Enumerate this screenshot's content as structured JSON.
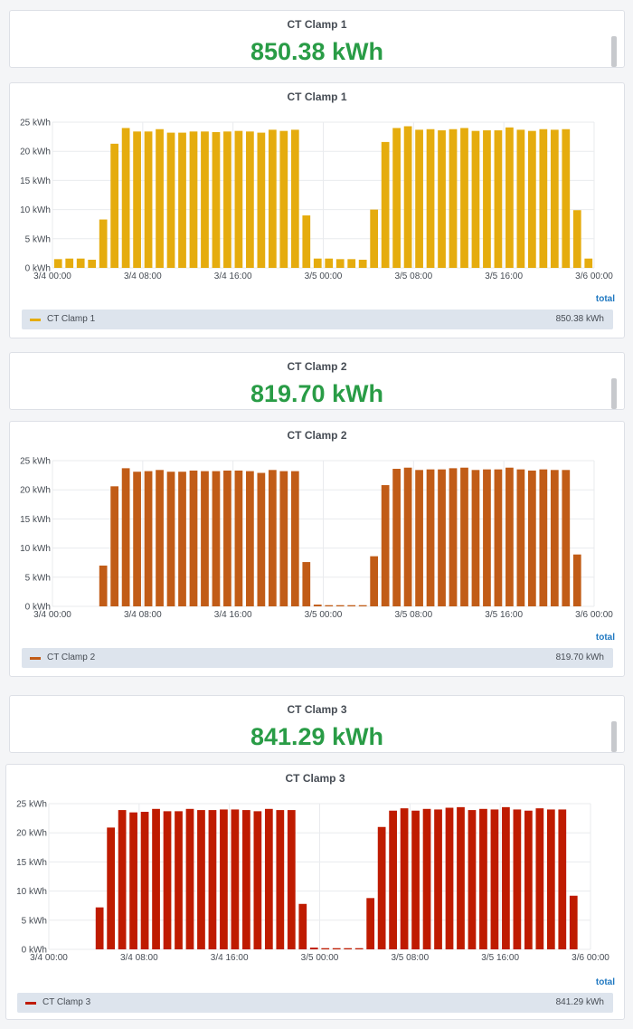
{
  "stats": [
    {
      "title": "CT Clamp 1",
      "value": "850.38 kWh"
    },
    {
      "title": "CT Clamp 2",
      "value": "819.70 kWh"
    },
    {
      "title": "CT Clamp 3",
      "value": "841.29 kWh"
    }
  ],
  "colors": {
    "clamp1": "#e5ac0e",
    "clamp2": "#c15c17",
    "clamp3": "#bf1b00",
    "stat": "#299c46"
  },
  "legend_header": "total",
  "chart_data": [
    {
      "type": "bar",
      "title": "CT Clamp 1",
      "xlabel": "",
      "ylabel": "",
      "ylim": [
        0,
        25
      ],
      "y_ticks": [
        "0 kWh",
        "5 kWh",
        "10 kWh",
        "15 kWh",
        "20 kWh",
        "25 kWh"
      ],
      "x_ticks": [
        "3/4 00:00",
        "3/4 08:00",
        "3/4 16:00",
        "3/5 00:00",
        "3/5 08:00",
        "3/5 16:00",
        "3/6 00:00"
      ],
      "series": [
        {
          "name": "CT Clamp 1",
          "total": "850.38 kWh",
          "values": [
            1.5,
            1.6,
            1.6,
            1.4,
            8.3,
            21.3,
            24.0,
            23.4,
            23.4,
            23.8,
            23.2,
            23.2,
            23.4,
            23.4,
            23.3,
            23.4,
            23.5,
            23.4,
            23.2,
            23.7,
            23.5,
            23.7,
            9.0,
            1.6,
            1.6,
            1.5,
            1.5,
            1.4,
            10.0,
            21.6,
            24.0,
            24.3,
            23.7,
            23.8,
            23.6,
            23.8,
            24.0,
            23.5,
            23.6,
            23.6,
            24.1,
            23.7,
            23.5,
            23.8,
            23.7,
            23.8,
            9.9,
            1.6
          ]
        }
      ]
    },
    {
      "type": "bar",
      "title": "CT Clamp 2",
      "xlabel": "",
      "ylabel": "",
      "ylim": [
        0,
        25
      ],
      "y_ticks": [
        "0 kWh",
        "5 kWh",
        "10 kWh",
        "15 kWh",
        "20 kWh",
        "25 kWh"
      ],
      "x_ticks": [
        "3/4 00:00",
        "3/4 08:00",
        "3/4 16:00",
        "3/5 00:00",
        "3/5 08:00",
        "3/5 16:00",
        "3/6 00:00"
      ],
      "series": [
        {
          "name": "CT Clamp 2",
          "total": "819.70 kWh",
          "values": [
            0,
            0,
            0,
            0,
            7.0,
            20.6,
            23.7,
            23.1,
            23.2,
            23.4,
            23.1,
            23.1,
            23.3,
            23.2,
            23.2,
            23.3,
            23.3,
            23.2,
            22.9,
            23.4,
            23.2,
            23.2,
            7.6,
            0.3,
            0.2,
            0.2,
            0.2,
            0.2,
            8.6,
            20.8,
            23.6,
            23.8,
            23.4,
            23.5,
            23.5,
            23.7,
            23.8,
            23.4,
            23.5,
            23.5,
            23.8,
            23.5,
            23.3,
            23.5,
            23.4,
            23.4,
            8.9,
            0
          ]
        }
      ]
    },
    {
      "type": "bar",
      "title": "CT Clamp 3",
      "xlabel": "",
      "ylabel": "",
      "ylim": [
        0,
        25
      ],
      "y_ticks": [
        "0 kWh",
        "5 kWh",
        "10 kWh",
        "15 kWh",
        "20 kWh",
        "25 kWh"
      ],
      "x_ticks": [
        "3/4 00:00",
        "3/4 08:00",
        "3/4 16:00",
        "3/5 00:00",
        "3/5 08:00",
        "3/5 16:00",
        "3/6 00:00"
      ],
      "series": [
        {
          "name": "CT Clamp 3",
          "total": "841.29 kWh",
          "values": [
            0,
            0,
            0,
            0,
            7.2,
            20.9,
            23.9,
            23.5,
            23.6,
            24.1,
            23.7,
            23.7,
            24.1,
            23.9,
            23.9,
            24.0,
            24.0,
            23.9,
            23.7,
            24.1,
            23.9,
            23.9,
            7.8,
            0.3,
            0.2,
            0.2,
            0.2,
            0.2,
            8.8,
            21.0,
            23.8,
            24.2,
            23.8,
            24.1,
            24.0,
            24.3,
            24.4,
            23.9,
            24.1,
            24.0,
            24.4,
            24.0,
            23.8,
            24.2,
            24.0,
            24.0,
            9.2,
            0
          ]
        }
      ]
    }
  ]
}
